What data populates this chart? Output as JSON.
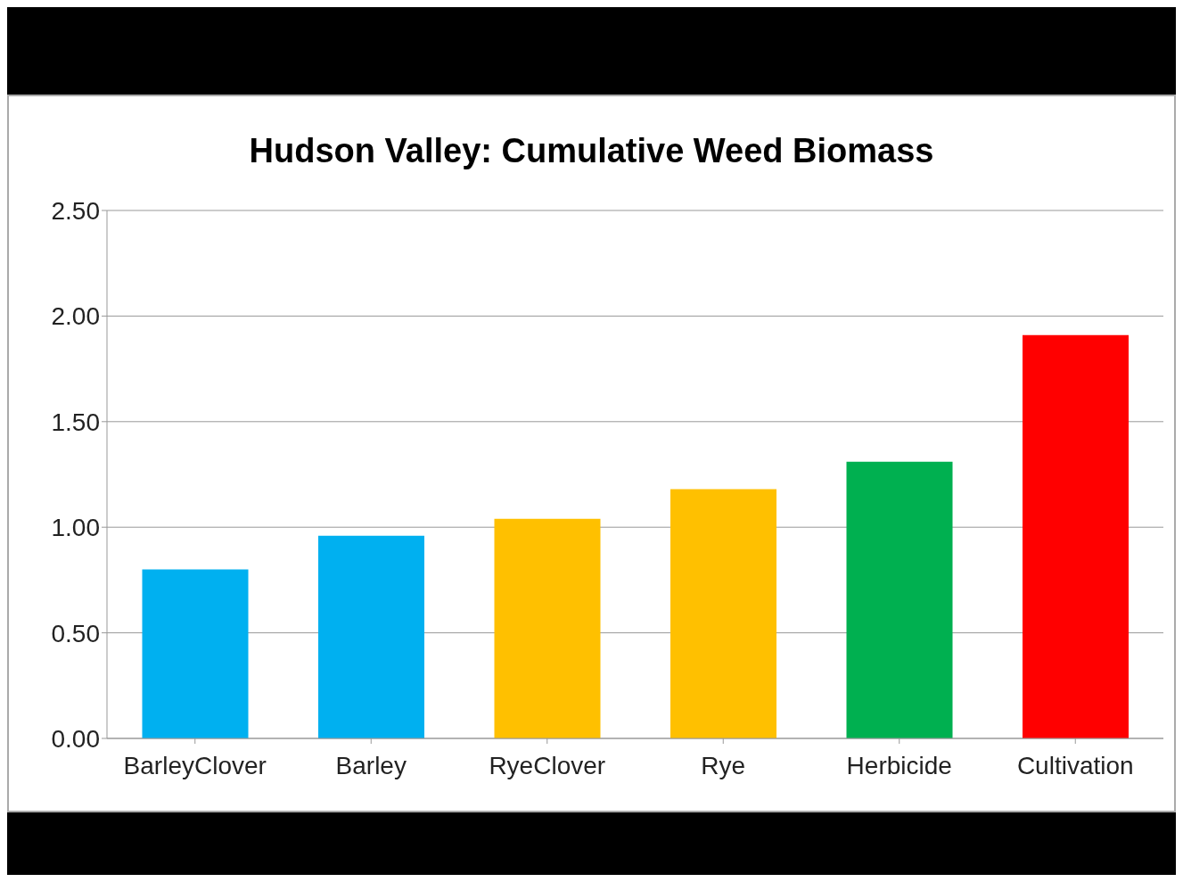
{
  "chart_data": {
    "type": "bar",
    "title": "Hudson Valley: Cumulative Weed Biomass",
    "categories": [
      "BarleyClover",
      "Barley",
      "RyeClover",
      "Rye",
      "Herbicide",
      "Cultivation"
    ],
    "values": [
      0.8,
      0.96,
      1.04,
      1.18,
      1.31,
      1.91
    ],
    "colors": [
      "#00b0f0",
      "#00b0f0",
      "#ffc000",
      "#ffc000",
      "#00b050",
      "#ff0000"
    ],
    "ylim": [
      0,
      2.5
    ],
    "yticks": [
      {
        "value": 0,
        "label": "0.00"
      },
      {
        "value": 0.5,
        "label": "0.50"
      },
      {
        "value": 1,
        "label": "1.00"
      },
      {
        "value": 1.5,
        "label": "1.50"
      },
      {
        "value": 2,
        "label": "2.00"
      },
      {
        "value": 2.5,
        "label": "2.50"
      }
    ],
    "grid": "y",
    "legend": false
  }
}
